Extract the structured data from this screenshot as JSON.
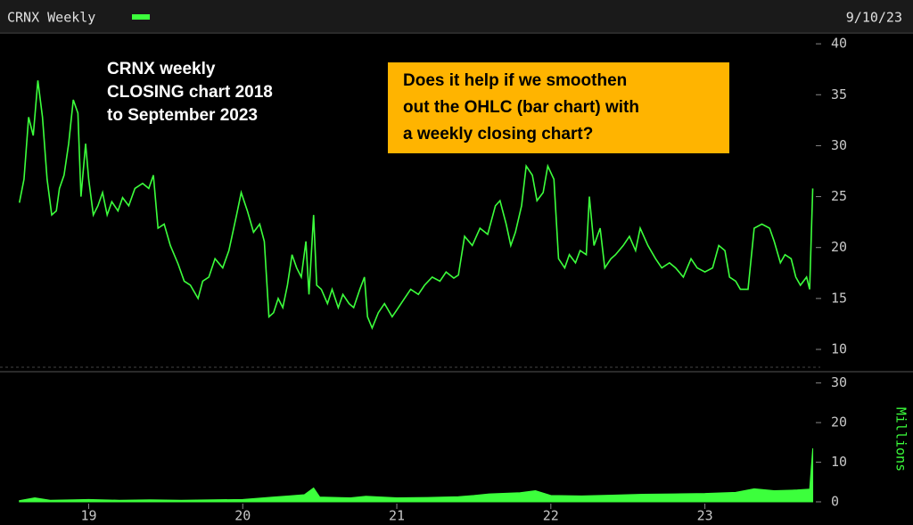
{
  "header": {
    "title": "CRNX Weekly",
    "date": "9/10/23"
  },
  "chart_data": [
    {
      "type": "line",
      "color": "#3cff3c",
      "annotations": [
        [
          "CRNX weekly",
          "CLOSING chart 2018",
          "to September 2023"
        ],
        [
          "Does it help if we smoothen",
          "out the OHLC (bar chart) with",
          "a weekly closing chart?"
        ]
      ],
      "x": [
        18.55,
        18.58,
        18.61,
        18.64,
        18.67,
        18.7,
        18.73,
        18.76,
        18.79,
        18.81,
        18.84,
        18.87,
        18.9,
        18.93,
        18.95,
        18.98,
        19.0,
        19.03,
        19.06,
        19.09,
        19.12,
        19.15,
        19.19,
        19.22,
        19.26,
        19.3,
        19.35,
        19.39,
        19.42,
        19.45,
        19.49,
        19.53,
        19.58,
        19.62,
        19.66,
        19.71,
        19.74,
        19.78,
        19.82,
        19.87,
        19.91,
        19.96,
        19.99,
        20.03,
        20.07,
        20.11,
        20.14,
        20.17,
        20.2,
        20.23,
        20.26,
        20.29,
        20.32,
        20.35,
        20.38,
        20.41,
        20.43,
        20.46,
        20.48,
        20.51,
        20.55,
        20.58,
        20.62,
        20.65,
        20.69,
        20.72,
        20.76,
        20.79,
        20.81,
        20.84,
        20.88,
        20.92,
        20.97,
        21.01,
        21.05,
        21.09,
        21.14,
        21.18,
        21.23,
        21.28,
        21.32,
        21.37,
        21.4,
        21.44,
        21.49,
        21.54,
        21.59,
        21.64,
        21.67,
        21.71,
        21.74,
        21.77,
        21.81,
        21.84,
        21.88,
        21.91,
        21.95,
        21.98,
        22.02,
        22.05,
        22.09,
        22.12,
        22.16,
        22.19,
        22.23,
        22.25,
        22.28,
        22.32,
        22.35,
        22.39,
        22.42,
        22.47,
        22.51,
        22.55,
        22.58,
        22.63,
        22.68,
        22.72,
        22.77,
        22.81,
        22.86,
        22.91,
        22.95,
        23.0,
        23.05,
        23.09,
        23.13,
        23.16,
        23.2,
        23.23,
        23.28,
        23.32,
        23.37,
        23.42,
        23.45,
        23.49,
        23.52,
        23.56,
        23.59,
        23.62,
        23.66,
        23.68,
        23.7
      ],
      "values": [
        24.4,
        26.7,
        32.8,
        31,
        36.4,
        32.8,
        26.7,
        23.2,
        23.6,
        25.8,
        27.1,
        30.2,
        34.5,
        33.2,
        25,
        30.2,
        26.7,
        23.2,
        24.1,
        25.4,
        23.2,
        24.5,
        23.6,
        24.9,
        24.1,
        25.8,
        26.3,
        25.8,
        27.1,
        21.9,
        22.3,
        20.2,
        18.4,
        16.7,
        16.3,
        15,
        16.7,
        17.1,
        18.9,
        18,
        19.7,
        23.2,
        25.4,
        23.6,
        21.5,
        22.3,
        20.6,
        13.2,
        13.6,
        15,
        14.1,
        16.3,
        19.3,
        18,
        17.1,
        20.6,
        15.4,
        23.2,
        16.3,
        15.9,
        14.5,
        15.9,
        14.1,
        15.4,
        14.5,
        14.1,
        15.9,
        17.1,
        13.2,
        12.1,
        13.6,
        14.5,
        13.2,
        14.1,
        15,
        15.9,
        15.4,
        16.3,
        17.1,
        16.7,
        17.6,
        17,
        17.3,
        21.1,
        20.2,
        21.9,
        21.3,
        24.1,
        24.6,
        22.3,
        20.2,
        21.5,
        24.1,
        28,
        27.1,
        24.6,
        25.4,
        28,
        26.7,
        18.9,
        18,
        19.3,
        18.5,
        19.7,
        19.3,
        25,
        20.2,
        21.9,
        18,
        18.9,
        19.3,
        20.2,
        21.1,
        19.7,
        21.9,
        20.2,
        18.9,
        18,
        18.5,
        18,
        17.1,
        18.9,
        18,
        17.6,
        18,
        20.2,
        19.7,
        17.1,
        16.7,
        15.9,
        15.9,
        21.9,
        22.3,
        21.9,
        20.6,
        18.5,
        19.3,
        18.9,
        17.1,
        16.3,
        17.1,
        15.9,
        25.8
      ],
      "xlim": [
        18.54,
        23.72
      ],
      "xticks": [
        19,
        20,
        21,
        22,
        23
      ],
      "ylim": [
        8.6,
        40.8
      ],
      "yticks": [
        10,
        15,
        20,
        25,
        30,
        35,
        40
      ]
    },
    {
      "type": "area",
      "color": "#3cff3c",
      "ylabel": "Millions",
      "x": [
        18.55,
        18.65,
        18.75,
        18.9,
        19.0,
        19.2,
        19.4,
        19.6,
        19.8,
        20.0,
        20.2,
        20.3,
        20.4,
        20.46,
        20.5,
        20.7,
        20.8,
        21.0,
        21.2,
        21.4,
        21.5,
        21.6,
        21.8,
        21.9,
        22.0,
        22.2,
        22.4,
        22.6,
        22.8,
        23.0,
        23.2,
        23.32,
        23.45,
        23.6,
        23.68,
        23.7
      ],
      "values": [
        0.3,
        1.0,
        0.4,
        0.5,
        0.6,
        0.4,
        0.5,
        0.4,
        0.5,
        0.6,
        1.2,
        1.5,
        1.8,
        3.5,
        1.2,
        1.0,
        1.4,
        1.0,
        1.1,
        1.3,
        1.6,
        2.0,
        2.3,
        2.8,
        1.6,
        1.5,
        1.7,
        1.9,
        2.0,
        2.1,
        2.4,
        3.3,
        2.8,
        3.0,
        3.2,
        13.5
      ],
      "xlim": [
        18.54,
        23.72
      ],
      "ylim": [
        0,
        31.5
      ],
      "yticks": [
        0,
        10,
        20,
        30
      ]
    }
  ]
}
